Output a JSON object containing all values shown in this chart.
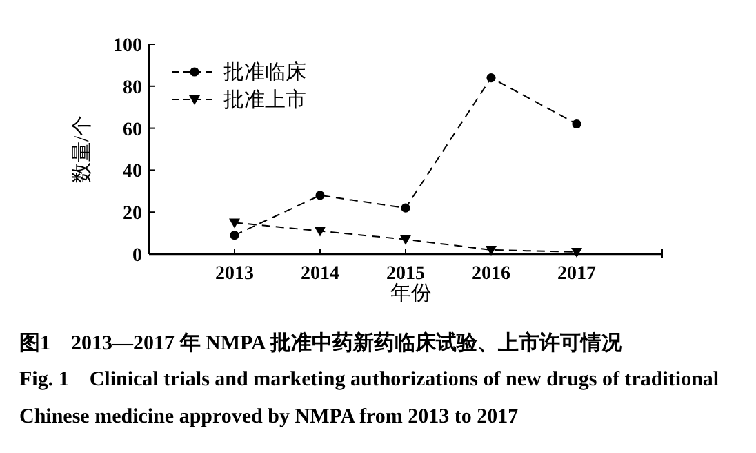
{
  "chart_data": {
    "type": "line",
    "title": "图1　2013—2017 年 NMPA 批准中药新药临床试验、上市许可情况",
    "subtitle": "Fig. 1　Clinical trials and marketing authorizations of new drugs of traditional Chinese medicine approved by NMPA from 2013 to 2017",
    "xlabel": "年份",
    "ylabel": "数量/个",
    "categories": [
      "2013",
      "2014",
      "2015",
      "2016",
      "2017"
    ],
    "series": [
      {
        "name": "批准临床",
        "color": "#000000",
        "marker": "circle",
        "line_style": "dashed",
        "values": [
          9,
          28,
          22,
          84,
          62
        ]
      },
      {
        "name": "批准上市",
        "color": "#000000",
        "marker": "triangle",
        "line_style": "dashed",
        "values": [
          15,
          11,
          7,
          2,
          1
        ]
      }
    ],
    "ylim": [
      0,
      100
    ],
    "yticks": [
      0,
      20,
      40,
      60,
      80,
      100
    ],
    "grid": false,
    "legend": "top left"
  }
}
